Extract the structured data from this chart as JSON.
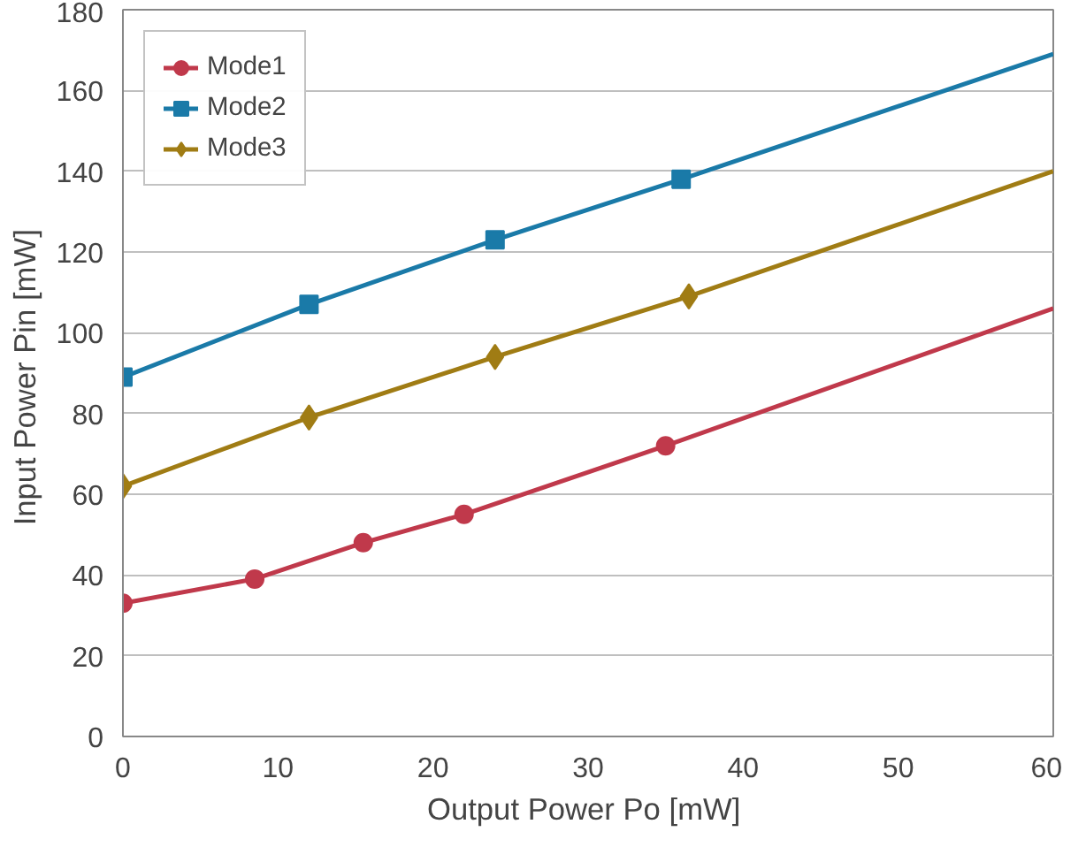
{
  "chart_data": {
    "type": "line",
    "xlabel": "Output Power  Po [mW]",
    "ylabel": "Input Power  Pin [mW]",
    "xlim": [
      0,
      60
    ],
    "ylim": [
      0,
      180
    ],
    "xticks": [
      0,
      10,
      20,
      30,
      40,
      50,
      60
    ],
    "yticks": [
      0,
      20,
      40,
      60,
      80,
      100,
      120,
      140,
      160,
      180
    ],
    "grid": "y",
    "legend": "top left",
    "line_style": "solid",
    "series": [
      {
        "name": "Mode1",
        "color": "#c0394b",
        "marker": "none",
        "x": [
          0,
          8.5,
          15.5,
          22,
          35,
          60
        ],
        "values": [
          33,
          39,
          48,
          55,
          72,
          106
        ]
      },
      {
        "name": "Mode2",
        "color": "#1a7aa8",
        "marker": "none",
        "x": [
          0,
          12,
          24,
          36,
          60
        ],
        "values": [
          89,
          107,
          123,
          138,
          169
        ]
      },
      {
        "name": "Mode3",
        "color": "#a07c14",
        "marker": "none",
        "x": [
          0,
          12,
          24,
          36.5,
          60
        ],
        "values": [
          62,
          79,
          94,
          109,
          140
        ]
      },
      {
        "color": "#c0394b",
        "type": "scatter",
        "marker": "circle",
        "x": [
          0,
          8.5,
          15.5,
          22,
          35
        ],
        "values": [
          33,
          39,
          48,
          55,
          72
        ]
      },
      {
        "color": "#1a7aa8",
        "type": "scatter",
        "marker": "square",
        "x": [
          0,
          12,
          24,
          36
        ],
        "values": [
          89,
          107,
          123,
          138
        ]
      },
      {
        "color": "#a07c14",
        "type": "scatter",
        "marker": "diamond",
        "x": [
          0,
          12,
          24,
          36.5
        ],
        "values": [
          62,
          79,
          94,
          109
        ]
      }
    ]
  }
}
